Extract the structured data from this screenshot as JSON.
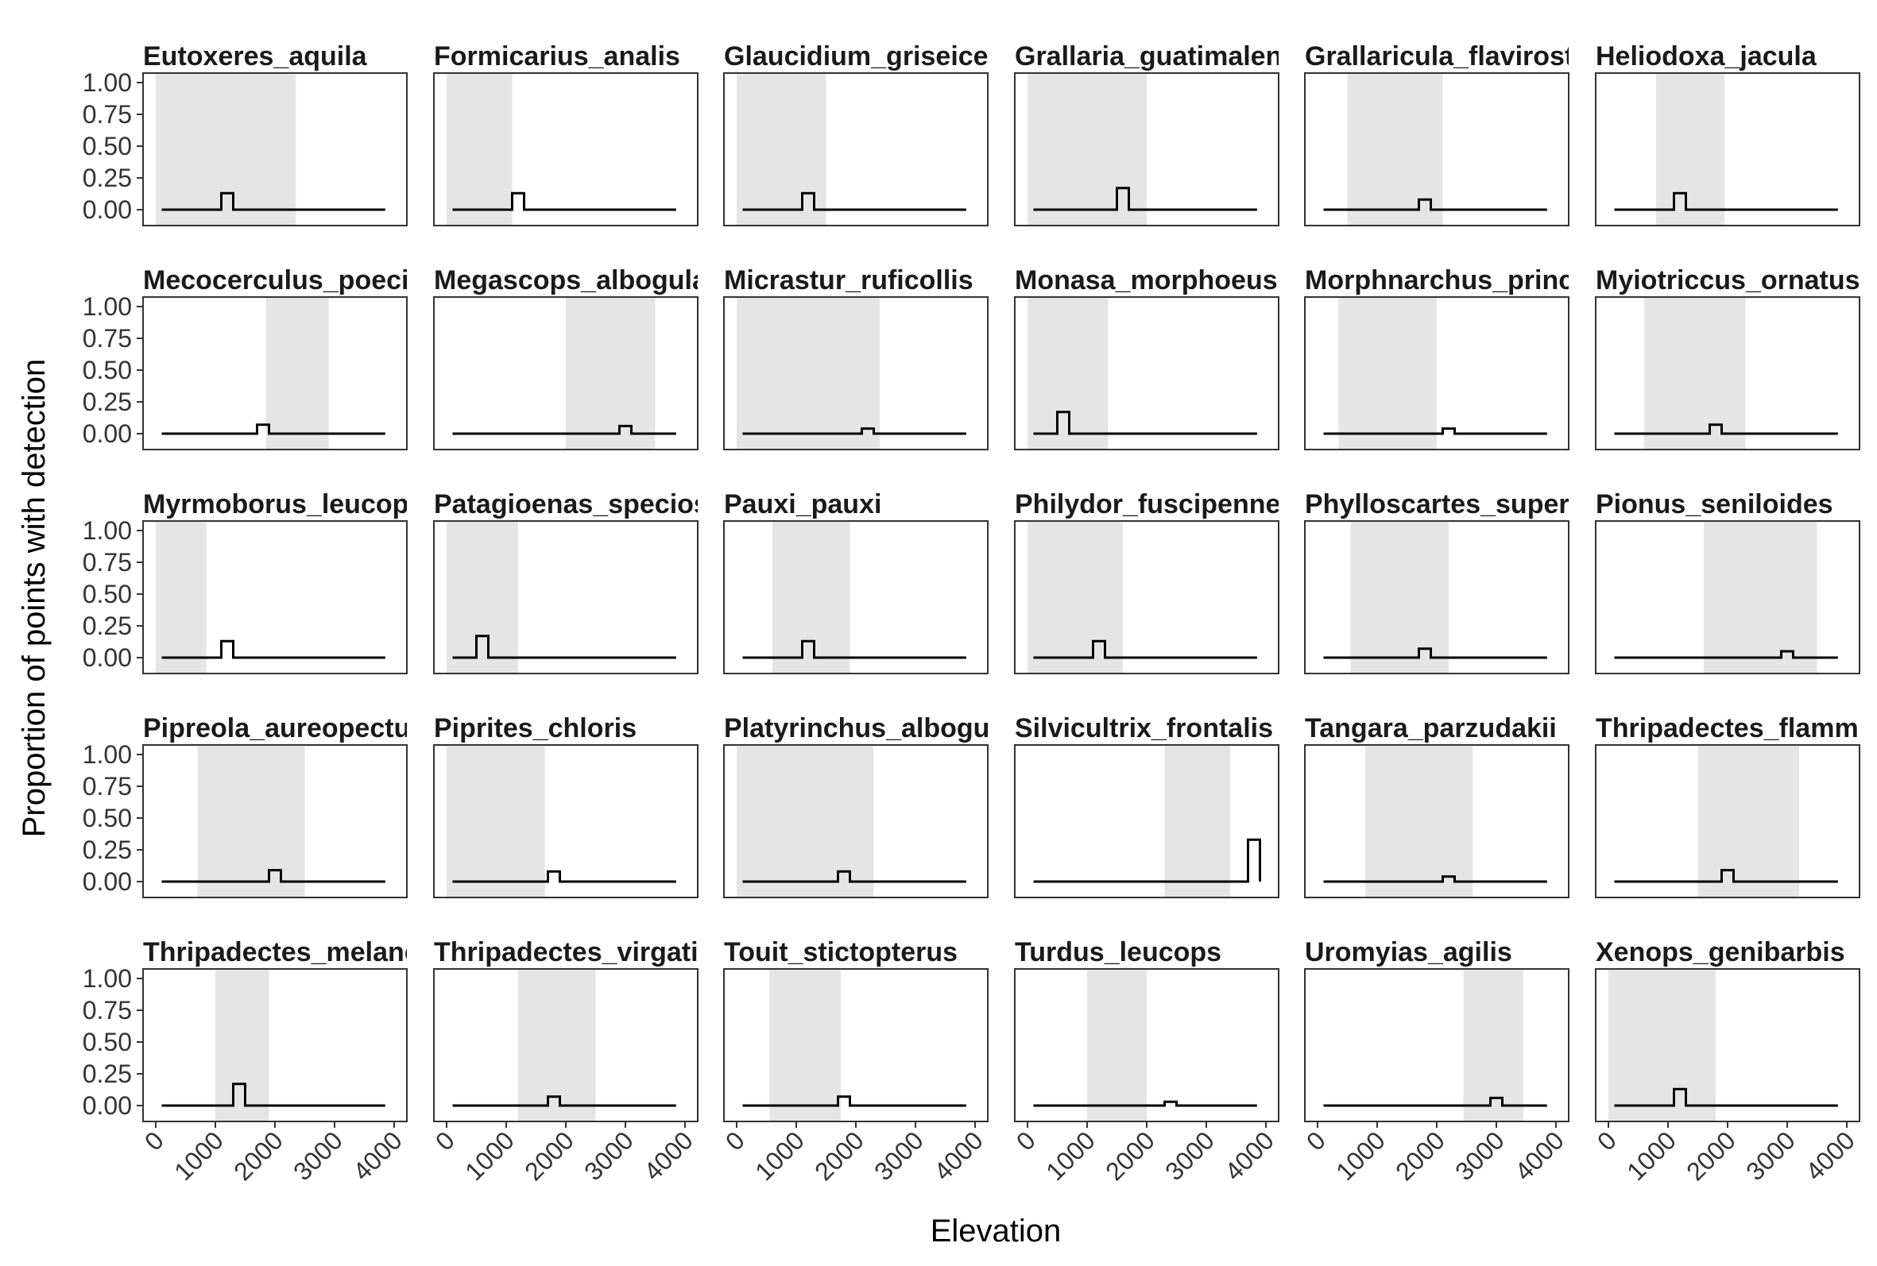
{
  "chart_data": {
    "type": "line",
    "subtype": "faceted step histograms with shaded elevation range",
    "xlabel": "Elevation",
    "ylabel": "Proportion of points with detection",
    "xlim": [
      0,
      4000
    ],
    "ylim": [
      0,
      1
    ],
    "x_ticks": [
      "0",
      "1000",
      "2000",
      "3000",
      "4000"
    ],
    "y_ticks": [
      "0.00",
      "0.25",
      "0.50",
      "0.75",
      "1.00"
    ],
    "grid": false,
    "layout": {
      "rows": 5,
      "cols": 6
    },
    "baseline_extent": [
      100,
      3850
    ],
    "bin_width": 200,
    "panels": [
      {
        "title": "Eutoxeres_aquila",
        "range": [
          0,
          2350
        ],
        "peak_x": 1100,
        "peak_y": 0.13
      },
      {
        "title": "Formicarius_analis",
        "range": [
          0,
          1100
        ],
        "peak_x": 1100,
        "peak_y": 0.13
      },
      {
        "title": "Glaucidium_griseiceps",
        "range": [
          0,
          1500
        ],
        "peak_x": 1100,
        "peak_y": 0.13
      },
      {
        "title": "Grallaria_guatimalensis",
        "range": [
          0,
          2000
        ],
        "peak_x": 1500,
        "peak_y": 0.17
      },
      {
        "title": "Grallaricula_flavirostris",
        "range": [
          500,
          2100
        ],
        "peak_x": 1700,
        "peak_y": 0.08
      },
      {
        "title": "Heliodoxa_jacula",
        "range": [
          800,
          1950
        ],
        "peak_x": 1100,
        "peak_y": 0.13
      },
      {
        "title": "Mecocerculus_poecilocercus",
        "range": [
          1850,
          2900
        ],
        "peak_x": 1700,
        "peak_y": 0.07
      },
      {
        "title": "Megascops_albogularis",
        "range": [
          2000,
          3500
        ],
        "peak_x": 2900,
        "peak_y": 0.06
      },
      {
        "title": "Micrastur_ruficollis",
        "range": [
          0,
          2400
        ],
        "peak_x": 2100,
        "peak_y": 0.04
      },
      {
        "title": "Monasa_morphoeus",
        "range": [
          0,
          1350
        ],
        "peak_x": 500,
        "peak_y": 0.17
      },
      {
        "title": "Morphnarchus_princeps",
        "range": [
          350,
          2000
        ],
        "peak_x": 2100,
        "peak_y": 0.04
      },
      {
        "title": "Myiotriccus_ornatus",
        "range": [
          600,
          2300
        ],
        "peak_x": 1700,
        "peak_y": 0.07
      },
      {
        "title": "Myrmoborus_leucophrys",
        "range": [
          0,
          850
        ],
        "peak_x": 1100,
        "peak_y": 0.13
      },
      {
        "title": "Patagioenas_speciosa",
        "range": [
          0,
          1200
        ],
        "peak_x": 500,
        "peak_y": 0.17
      },
      {
        "title": "Pauxi_pauxi",
        "range": [
          600,
          1900
        ],
        "peak_x": 1100,
        "peak_y": 0.13
      },
      {
        "title": "Philydor_fuscipenne",
        "range": [
          0,
          1600
        ],
        "peak_x": 1100,
        "peak_y": 0.13
      },
      {
        "title": "Phylloscartes_superciliaris",
        "range": [
          550,
          2200
        ],
        "peak_x": 1700,
        "peak_y": 0.07
      },
      {
        "title": "Pionus_seniloides",
        "range": [
          1600,
          3500
        ],
        "peak_x": 2900,
        "peak_y": 0.05
      },
      {
        "title": "Pipreola_aureopectus",
        "range": [
          700,
          2500
        ],
        "peak_x": 1900,
        "peak_y": 0.09
      },
      {
        "title": "Piprites_chloris",
        "range": [
          0,
          1650
        ],
        "peak_x": 1700,
        "peak_y": 0.08
      },
      {
        "title": "Platyrinchus_albogularis",
        "range": [
          0,
          2300
        ],
        "peak_x": 1700,
        "peak_y": 0.08
      },
      {
        "title": "Silvicultrix_frontalis",
        "range": [
          2300,
          3400
        ],
        "peak_x": 3700,
        "peak_y": 0.33
      },
      {
        "title": "Tangara_parzudakii",
        "range": [
          800,
          2600
        ],
        "peak_x": 2100,
        "peak_y": 0.04
      },
      {
        "title": "Thripadectes_flammulatus",
        "range": [
          1500,
          3200
        ],
        "peak_x": 1900,
        "peak_y": 0.09
      },
      {
        "title": "Thripadectes_melanorhynchus",
        "range": [
          1000,
          1900
        ],
        "peak_x": 1300,
        "peak_y": 0.17
      },
      {
        "title": "Thripadectes_virgaticeps",
        "range": [
          1200,
          2500
        ],
        "peak_x": 1700,
        "peak_y": 0.07
      },
      {
        "title": "Touit_stictopterus",
        "range": [
          550,
          1750
        ],
        "peak_x": 1700,
        "peak_y": 0.07
      },
      {
        "title": "Turdus_leucops",
        "range": [
          1000,
          2000
        ],
        "peak_x": 2300,
        "peak_y": 0.03
      },
      {
        "title": "Uromyias_agilis",
        "range": [
          2450,
          3450
        ],
        "peak_x": 2900,
        "peak_y": 0.06
      },
      {
        "title": "Xenops_genibarbis",
        "range": [
          0,
          1800
        ],
        "peak_x": 1100,
        "peak_y": 0.13
      }
    ]
  }
}
